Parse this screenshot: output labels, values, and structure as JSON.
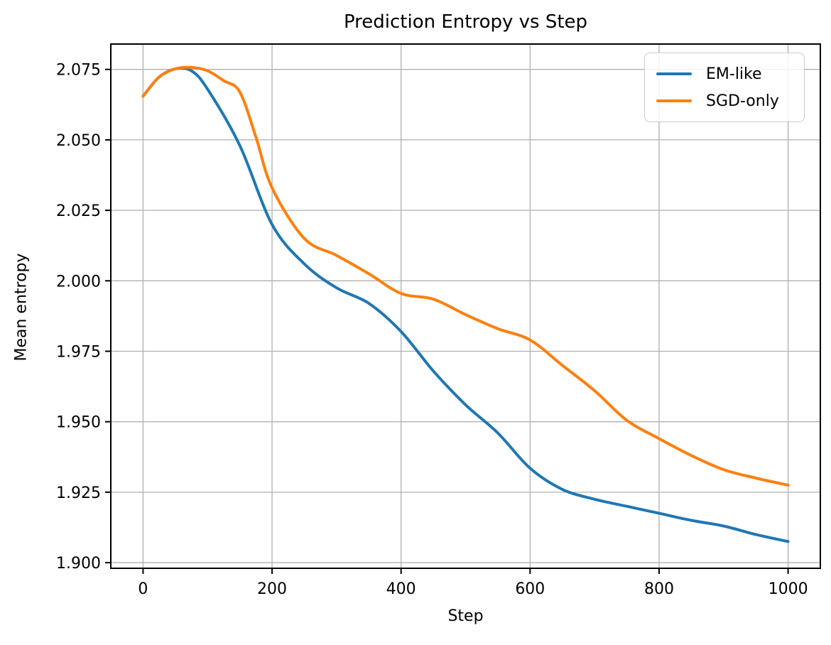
{
  "colors": {
    "em_like": "#1f77b4",
    "sgd_only": "#ff7f0e",
    "grid": "#b0b0b0",
    "spine": "#000000",
    "text": "#000000",
    "legend_border": "#cccccc"
  },
  "chart_data": {
    "type": "line",
    "title": "Prediction Entropy vs Step",
    "xlabel": "Step",
    "ylabel": "Mean entropy",
    "xlim": [
      -50,
      1050
    ],
    "ylim": [
      1.898,
      2.084
    ],
    "grid": true,
    "legend_position": "upper right",
    "xticks": [
      0,
      200,
      400,
      600,
      800,
      1000
    ],
    "xtick_labels": [
      "0",
      "200",
      "400",
      "600",
      "800",
      "1000"
    ],
    "yticks": [
      1.9,
      1.925,
      1.95,
      1.975,
      2.0,
      2.025,
      2.05,
      2.075
    ],
    "ytick_labels": [
      "1.900",
      "1.925",
      "1.950",
      "1.975",
      "2.000",
      "2.025",
      "2.050",
      "2.075"
    ],
    "series": [
      {
        "name": "EM-like",
        "color": "#1f77b4",
        "x": [
          0,
          25,
          50,
          75,
          100,
          150,
          200,
          250,
          300,
          350,
          400,
          450,
          500,
          550,
          600,
          650,
          700,
          750,
          800,
          850,
          900,
          950,
          1000
        ],
        "y": [
          2.0655,
          2.0723,
          2.0752,
          2.0745,
          2.068,
          2.048,
          2.02,
          2.006,
          1.9975,
          1.992,
          1.982,
          1.968,
          1.956,
          1.946,
          1.9335,
          1.926,
          1.9225,
          1.92,
          1.9175,
          1.915,
          1.913,
          1.91,
          1.9075
        ]
      },
      {
        "name": "SGD-only",
        "color": "#ff7f0e",
        "x": [
          0,
          25,
          50,
          75,
          100,
          125,
          150,
          175,
          200,
          250,
          300,
          350,
          400,
          450,
          500,
          550,
          600,
          650,
          700,
          750,
          800,
          850,
          900,
          950,
          1000
        ],
        "y": [
          2.0655,
          2.0723,
          2.0752,
          2.0757,
          2.0745,
          2.071,
          2.067,
          2.051,
          2.033,
          2.015,
          2.009,
          2.0025,
          1.9955,
          1.9935,
          1.988,
          1.983,
          1.979,
          1.97,
          1.961,
          1.9505,
          1.944,
          1.938,
          1.933,
          1.93,
          1.9275
        ]
      }
    ]
  }
}
